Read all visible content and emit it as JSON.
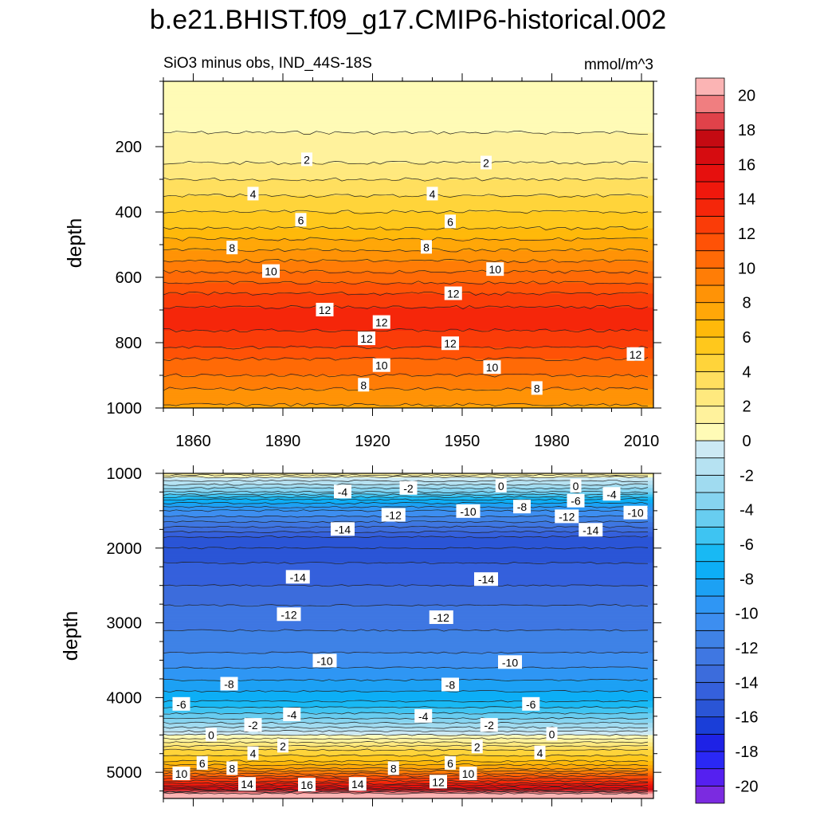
{
  "chart_data": {
    "type": "heatmap",
    "title": "b.e21.BHIST.f09_g17.CMIP6-historical.002",
    "subtitle_left": "SiO3 minus obs, IND_44S-18S",
    "units": "mmol/m^3",
    "x_ticks": [
      "1860",
      "1890",
      "1920",
      "1950",
      "1980",
      "2010"
    ],
    "xlim": [
      1850,
      2014
    ],
    "panels": [
      {
        "name": "upper",
        "ylabel": "depth",
        "ylim": [
          0,
          1000
        ],
        "y_ticks": [
          "200",
          "400",
          "600",
          "800",
          "1000"
        ],
        "profile": [
          {
            "depth": 0,
            "value": 0.3
          },
          {
            "depth": 100,
            "value": 0.6
          },
          {
            "depth": 200,
            "value": 1.3
          },
          {
            "depth": 250,
            "value": 2.0
          },
          {
            "depth": 300,
            "value": 3.0
          },
          {
            "depth": 350,
            "value": 4.0
          },
          {
            "depth": 400,
            "value": 5.0
          },
          {
            "depth": 450,
            "value": 6.0
          },
          {
            "depth": 500,
            "value": 7.5
          },
          {
            "depth": 550,
            "value": 9.0
          },
          {
            "depth": 600,
            "value": 10.5
          },
          {
            "depth": 650,
            "value": 12.0
          },
          {
            "depth": 700,
            "value": 13.2
          },
          {
            "depth": 750,
            "value": 13.2
          },
          {
            "depth": 800,
            "value": 12.4
          },
          {
            "depth": 850,
            "value": 11.0
          },
          {
            "depth": 900,
            "value": 10.0
          },
          {
            "depth": 950,
            "value": 8.8
          },
          {
            "depth": 1000,
            "value": 7.8
          }
        ],
        "contour_labels": [
          {
            "text": "2",
            "year": 1898,
            "depth": 240
          },
          {
            "text": "2",
            "year": 1958,
            "depth": 250
          },
          {
            "text": "4",
            "year": 1880,
            "depth": 345
          },
          {
            "text": "4",
            "year": 1940,
            "depth": 345
          },
          {
            "text": "6",
            "year": 1896,
            "depth": 425
          },
          {
            "text": "6",
            "year": 1946,
            "depth": 430
          },
          {
            "text": "8",
            "year": 1873,
            "depth": 510
          },
          {
            "text": "8",
            "year": 1938,
            "depth": 508
          },
          {
            "text": "10",
            "year": 1886,
            "depth": 582
          },
          {
            "text": "10",
            "year": 1961,
            "depth": 576
          },
          {
            "text": "12",
            "year": 1904,
            "depth": 700
          },
          {
            "text": "12",
            "year": 1947,
            "depth": 650
          },
          {
            "text": "12",
            "year": 1918,
            "depth": 788
          },
          {
            "text": "12",
            "year": 1923,
            "depth": 738
          },
          {
            "text": "12",
            "year": 1946,
            "depth": 803
          },
          {
            "text": "12",
            "year": 2008,
            "depth": 836
          },
          {
            "text": "10",
            "year": 1923,
            "depth": 870
          },
          {
            "text": "10",
            "year": 1960,
            "depth": 876
          },
          {
            "text": "8",
            "year": 1917,
            "depth": 930
          },
          {
            "text": "8",
            "year": 1975,
            "depth": 940
          }
        ]
      },
      {
        "name": "lower",
        "ylabel": "depth",
        "ylim": [
          1000,
          5350
        ],
        "y_ticks": [
          "1000",
          "2000",
          "3000",
          "4000",
          "5000"
        ],
        "profile": [
          {
            "depth": 1000,
            "value": 2.0
          },
          {
            "depth": 1050,
            "value": 0
          },
          {
            "depth": 1150,
            "value": -2
          },
          {
            "depth": 1250,
            "value": -4
          },
          {
            "depth": 1350,
            "value": -7
          },
          {
            "depth": 1500,
            "value": -10
          },
          {
            "depth": 1650,
            "value": -12
          },
          {
            "depth": 1850,
            "value": -15
          },
          {
            "depth": 2000,
            "value": -16
          },
          {
            "depth": 2200,
            "value": -15
          },
          {
            "depth": 2500,
            "value": -14
          },
          {
            "depth": 2900,
            "value": -12.5
          },
          {
            "depth": 3300,
            "value": -11.5
          },
          {
            "depth": 3600,
            "value": -10
          },
          {
            "depth": 3850,
            "value": -8.5
          },
          {
            "depth": 4050,
            "value": -7
          },
          {
            "depth": 4250,
            "value": -4.5
          },
          {
            "depth": 4400,
            "value": -2
          },
          {
            "depth": 4500,
            "value": 0
          },
          {
            "depth": 4600,
            "value": 2
          },
          {
            "depth": 4700,
            "value": 4
          },
          {
            "depth": 4850,
            "value": 6
          },
          {
            "depth": 4950,
            "value": 8
          },
          {
            "depth": 5050,
            "value": 11
          },
          {
            "depth": 5150,
            "value": 14
          },
          {
            "depth": 5230,
            "value": 17
          },
          {
            "depth": 5280,
            "value": 20
          },
          {
            "depth": 5350,
            "value": 21
          }
        ],
        "contour_labels": [
          {
            "text": "-4",
            "year": 1910,
            "depth": 1250
          },
          {
            "text": "-2",
            "year": 1932,
            "depth": 1200
          },
          {
            "text": "0",
            "year": 1963,
            "depth": 1170
          },
          {
            "text": "0",
            "year": 1988,
            "depth": 1170
          },
          {
            "text": "-4",
            "year": 2000,
            "depth": 1280
          },
          {
            "text": "-6",
            "year": 1988,
            "depth": 1370
          },
          {
            "text": "-8",
            "year": 1970,
            "depth": 1450
          },
          {
            "text": "-10",
            "year": 1952,
            "depth": 1510
          },
          {
            "text": "-12",
            "year": 1927,
            "depth": 1560
          },
          {
            "text": "-12",
            "year": 1985,
            "depth": 1580
          },
          {
            "text": "-10",
            "year": 2008,
            "depth": 1530
          },
          {
            "text": "-14",
            "year": 1910,
            "depth": 1750
          },
          {
            "text": "-14",
            "year": 1993,
            "depth": 1760
          },
          {
            "text": "-14",
            "year": 1895,
            "depth": 2390
          },
          {
            "text": "-14",
            "year": 1958,
            "depth": 2420
          },
          {
            "text": "-12",
            "year": 1892,
            "depth": 2890
          },
          {
            "text": "-12",
            "year": 1943,
            "depth": 2930
          },
          {
            "text": "-10",
            "year": 1904,
            "depth": 3510
          },
          {
            "text": "-10",
            "year": 1966,
            "depth": 3530
          },
          {
            "text": "-8",
            "year": 1872,
            "depth": 3820
          },
          {
            "text": "-8",
            "year": 1946,
            "depth": 3830
          },
          {
            "text": "-6",
            "year": 1856,
            "depth": 4090
          },
          {
            "text": "-6",
            "year": 1973,
            "depth": 4090
          },
          {
            "text": "-4",
            "year": 1893,
            "depth": 4230
          },
          {
            "text": "-4",
            "year": 1937,
            "depth": 4250
          },
          {
            "text": "-2",
            "year": 1880,
            "depth": 4370
          },
          {
            "text": "-2",
            "year": 1959,
            "depth": 4370
          },
          {
            "text": "0",
            "year": 1866,
            "depth": 4500
          },
          {
            "text": "0",
            "year": 1980,
            "depth": 4490
          },
          {
            "text": "2",
            "year": 1890,
            "depth": 4650
          },
          {
            "text": "2",
            "year": 1955,
            "depth": 4660
          },
          {
            "text": "4",
            "year": 1880,
            "depth": 4750
          },
          {
            "text": "4",
            "year": 1976,
            "depth": 4740
          },
          {
            "text": "6",
            "year": 1863,
            "depth": 4880
          },
          {
            "text": "6",
            "year": 1946,
            "depth": 4880
          },
          {
            "text": "8",
            "year": 1873,
            "depth": 4950
          },
          {
            "text": "8",
            "year": 1927,
            "depth": 4950
          },
          {
            "text": "10",
            "year": 1856,
            "depth": 5020
          },
          {
            "text": "10",
            "year": 1952,
            "depth": 5020
          },
          {
            "text": "14",
            "year": 1878,
            "depth": 5160
          },
          {
            "text": "16",
            "year": 1898,
            "depth": 5170
          },
          {
            "text": "14",
            "year": 1915,
            "depth": 5160
          },
          {
            "text": "12",
            "year": 1942,
            "depth": 5130
          }
        ]
      }
    ],
    "colorbar": {
      "levels": [
        -21,
        -20,
        -19,
        -18,
        -17,
        -16,
        -15,
        -14,
        -13,
        -12,
        -11,
        -10,
        -9,
        -8,
        -7,
        -6,
        -5,
        -4,
        -3,
        -2,
        -1,
        0,
        1,
        2,
        3,
        4,
        5,
        6,
        7,
        8,
        9,
        10,
        11,
        12,
        13,
        14,
        15,
        16,
        17,
        18,
        19,
        20,
        21
      ],
      "tick_labels": [
        "-20",
        "-18",
        "-16",
        "-14",
        "-12",
        "-10",
        "-8",
        "-6",
        "-4",
        "-2",
        "0",
        "2",
        "4",
        "6",
        "8",
        "10",
        "12",
        "14",
        "16",
        "18",
        "20"
      ],
      "colors": [
        "#7b2be0",
        "#5520f0",
        "#2a28f5",
        "#1e22e6",
        "#1a3ed8",
        "#2a55d6",
        "#3560dc",
        "#3c6cdc",
        "#3f77e2",
        "#3f82e6",
        "#3d8ef0",
        "#2f96f4",
        "#1ca1f4",
        "#0daef6",
        "#18b9f4",
        "#3ec4f2",
        "#68cdf0",
        "#86d4f0",
        "#a0dbf0",
        "#b6e2f2",
        "#cce9f4",
        "#fffbb6",
        "#fff29c",
        "#ffe97e",
        "#ffdf5f",
        "#ffd43a",
        "#ffc81c",
        "#ffb90a",
        "#ffa708",
        "#ff9306",
        "#ff7d06",
        "#ff6a06",
        "#ff5206",
        "#fa3c08",
        "#f5260a",
        "#ef180c",
        "#e6100e",
        "#d60c10",
        "#c40a12",
        "#e0424a",
        "#f07e80",
        "#fbb4b4"
      ]
    }
  }
}
